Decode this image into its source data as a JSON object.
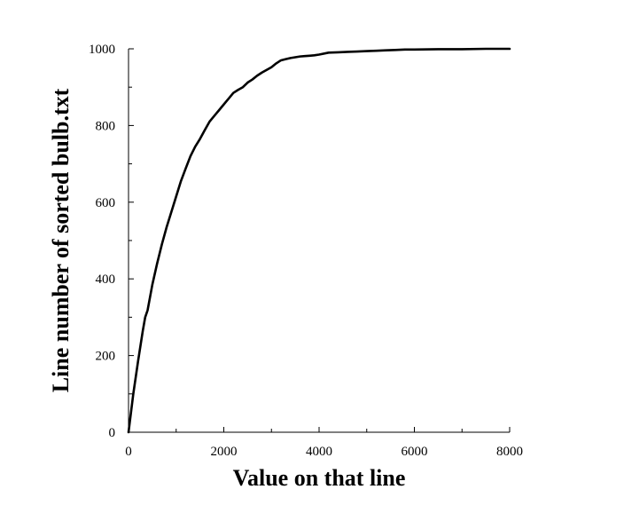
{
  "chart_data": {
    "type": "line",
    "xlabel": "Value on that line",
    "ylabel": "Line number of sorted bulb.txt",
    "xlim": [
      0,
      8000
    ],
    "ylim": [
      0,
      1000
    ],
    "x_ticks": [
      0,
      2000,
      4000,
      6000,
      8000
    ],
    "y_ticks": [
      0,
      200,
      400,
      600,
      800,
      1000
    ],
    "x_tick_labels": [
      "0",
      "2000",
      "4000",
      "6000",
      "8000"
    ],
    "y_tick_labels": [
      "0",
      "200",
      "400",
      "600",
      "800",
      "1000"
    ],
    "x_minor_step": 1000,
    "y_minor_step": 100,
    "grid": false,
    "series": [
      {
        "color": "#000000",
        "x": [
          0,
          100,
          200,
          300,
          350,
          400,
          500,
          600,
          700,
          800,
          900,
          1000,
          1100,
          1200,
          1300,
          1400,
          1500,
          1600,
          1700,
          1800,
          1900,
          2000,
          2100,
          2200,
          2300,
          2400,
          2500,
          2600,
          2700,
          2800,
          2900,
          3000,
          3100,
          3200,
          3300,
          3400,
          3500,
          3600,
          3700,
          3800,
          3900,
          4000,
          4200,
          4400,
          4600,
          4800,
          5000,
          5200,
          5400,
          5600,
          5800,
          6000,
          6500,
          7000,
          7500,
          8000
        ],
        "y": [
          0,
          100,
          185,
          265,
          300,
          318,
          385,
          440,
          490,
          535,
          575,
          615,
          655,
          688,
          720,
          745,
          765,
          788,
          810,
          825,
          840,
          855,
          870,
          885,
          893,
          900,
          912,
          920,
          930,
          938,
          945,
          952,
          962,
          970,
          973,
          976,
          978,
          980,
          981,
          982,
          983,
          985,
          990,
          991,
          992,
          993,
          994,
          995,
          996,
          997,
          998,
          998,
          999,
          999,
          1000,
          1000
        ]
      }
    ]
  }
}
